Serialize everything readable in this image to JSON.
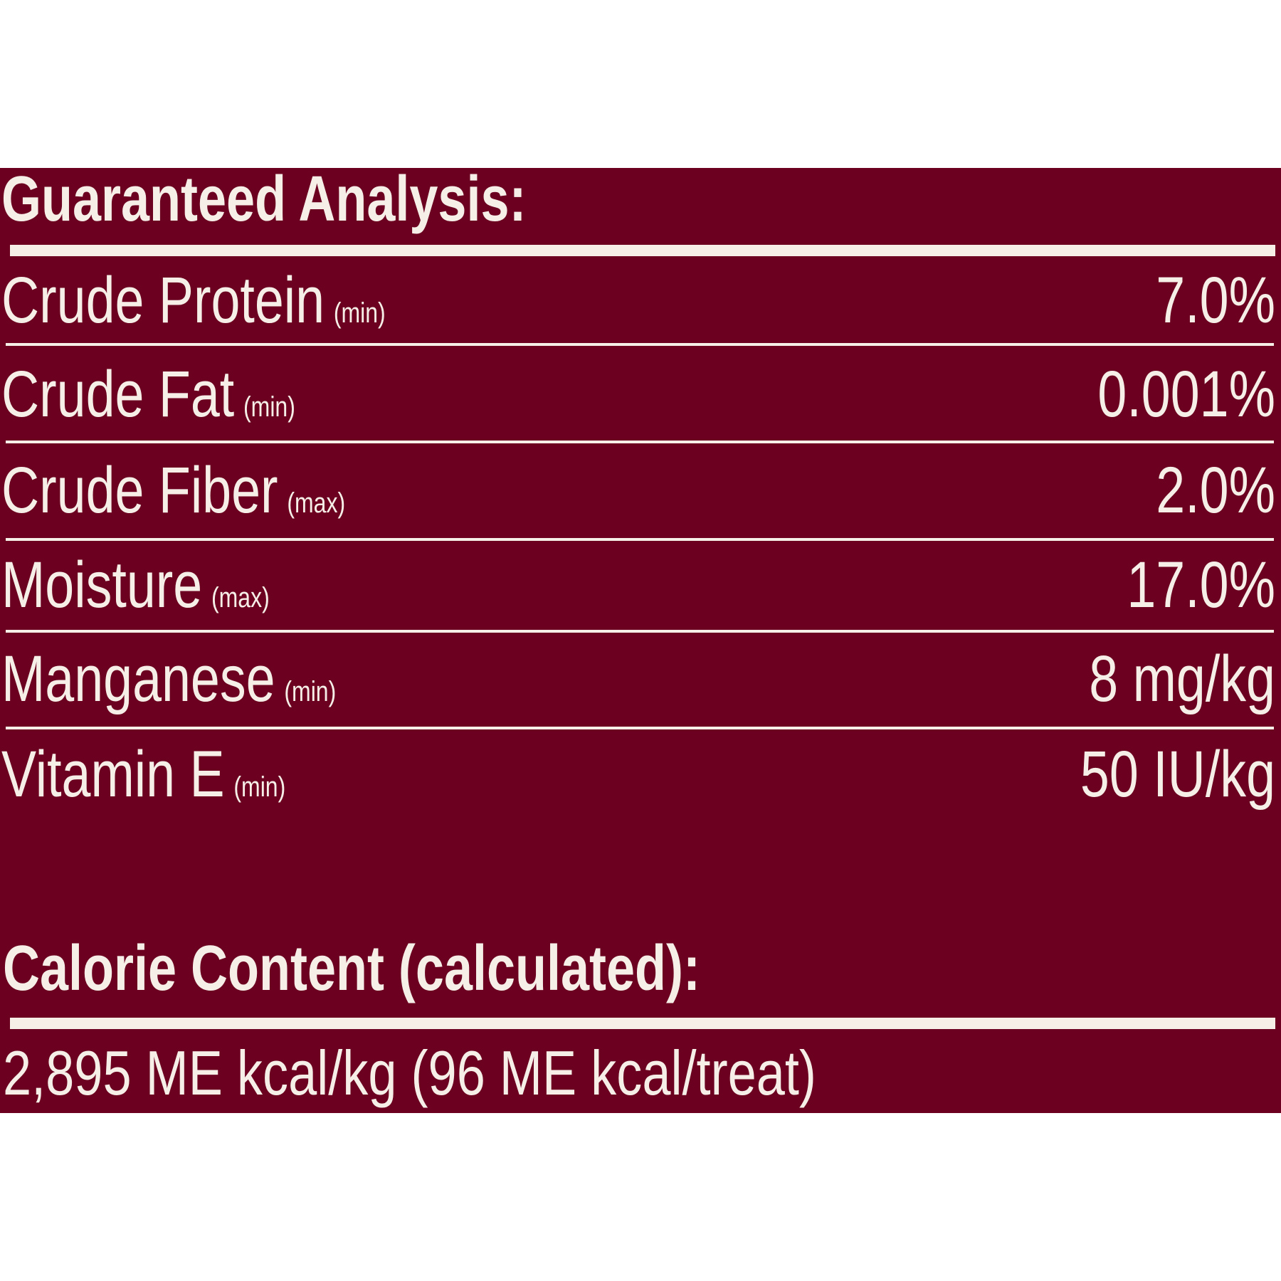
{
  "header": {
    "title": "Guaranteed Analysis:"
  },
  "table": {
    "rows": [
      [
        "Crude Protein",
        "(min)",
        "7.0%"
      ],
      [
        "Crude Fat",
        "(min)",
        "0.001%"
      ],
      [
        "Crude Fiber",
        "(max)",
        "2.0%"
      ],
      [
        "Moisture",
        "(max)",
        "17.0%"
      ],
      [
        "Manganese",
        "(min)",
        "8 mg/kg"
      ],
      [
        "Vitamin E",
        "(min)",
        "50 IU/kg"
      ]
    ]
  },
  "calorie": {
    "title": "Calorie Content (calculated):",
    "text": "2,895 ME kcal/kg (96 ME kcal/treat)"
  }
}
